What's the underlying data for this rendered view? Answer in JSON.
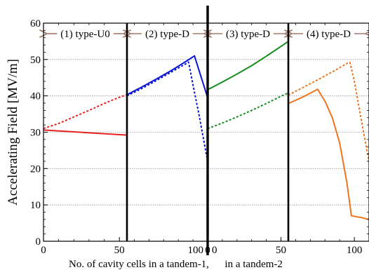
{
  "chart_data": {
    "type": "line",
    "ylabel": "Accelerating Field [MV/m]",
    "xlabel": "No. of cavity cells in a tandem-1,      in a tandem-2",
    "ylim": [
      0,
      60
    ],
    "y_ticks": [
      0,
      10,
      20,
      30,
      40,
      50,
      60
    ],
    "grid": "horizontal dotted",
    "colors": {
      "section1": "#e8231f",
      "section2": "#0a14d8",
      "section3": "#148c1e",
      "section4": "#f0731e"
    },
    "panels": [
      {
        "label": "(1) type-U0",
        "x_ticks": [
          0,
          50
        ],
        "xlim": [
          0,
          55
        ],
        "color_key": "section1",
        "series": [
          {
            "style": "solid",
            "points": [
              [
                0,
                30.6
              ],
              [
                55,
                29.2
              ]
            ]
          },
          {
            "style": "dashed",
            "points": [
              [
                0,
                31.0
              ],
              [
                10,
                32.4
              ],
              [
                20,
                34.2
              ],
              [
                30,
                36.0
              ],
              [
                40,
                37.9
              ],
              [
                50,
                39.6
              ],
              [
                55,
                40.3
              ]
            ]
          }
        ]
      },
      {
        "label": "(2) type-D",
        "x_ticks": [],
        "xlim": [
          55,
          110
        ],
        "color_key": "section2",
        "series": [
          {
            "style": "solid",
            "points": [
              [
                55,
                40.3
              ],
              [
                65,
                42.4
              ],
              [
                75,
                44.6
              ],
              [
                85,
                46.9
              ],
              [
                95,
                49.4
              ],
              [
                101,
                51.0
              ],
              [
                110,
                39.5
              ]
            ]
          },
          {
            "style": "dashed",
            "points": [
              [
                55,
                40.0
              ],
              [
                65,
                42.0
              ],
              [
                75,
                44.2
              ],
              [
                85,
                46.5
              ],
              [
                95,
                48.8
              ],
              [
                97,
                49.3
              ],
              [
                100,
                43.0
              ],
              [
                104,
                35.0
              ],
              [
                107,
                28.5
              ],
              [
                110,
                22.0
              ]
            ]
          }
        ]
      },
      {
        "label": "(3) type-D",
        "x_ticks": [
          0,
          50
        ],
        "xlim": [
          0,
          55
        ],
        "color_key": "section3",
        "series": [
          {
            "style": "solid",
            "points": [
              [
                0,
                41.7
              ],
              [
                10,
                43.8
              ],
              [
                20,
                46.0
              ],
              [
                30,
                48.3
              ],
              [
                40,
                50.9
              ],
              [
                50,
                53.6
              ],
              [
                55,
                55.0
              ]
            ]
          },
          {
            "style": "dashed",
            "points": [
              [
                0,
                31.0
              ],
              [
                10,
                32.5
              ],
              [
                20,
                34.2
              ],
              [
                30,
                36.0
              ],
              [
                40,
                37.9
              ],
              [
                50,
                39.9
              ],
              [
                55,
                40.8
              ]
            ]
          }
        ]
      },
      {
        "label": "(4) type-D",
        "x_ticks": [
          100
        ],
        "xlim": [
          55,
          110
        ],
        "color_key": "section4",
        "series": [
          {
            "style": "solid",
            "points": [
              [
                55,
                37.9
              ],
              [
                65,
                39.7
              ],
              [
                75,
                41.8
              ],
              [
                80,
                38.5
              ],
              [
                85,
                34.0
              ],
              [
                90,
                27.0
              ],
              [
                95,
                16.0
              ],
              [
                98,
                7.0
              ],
              [
                105,
                6.5
              ],
              [
                110,
                6.0
              ]
            ]
          },
          {
            "style": "dashed",
            "points": [
              [
                55,
                40.2
              ],
              [
                65,
                42.3
              ],
              [
                75,
                44.4
              ],
              [
                85,
                46.6
              ],
              [
                95,
                48.9
              ],
              [
                97,
                49.2
              ],
              [
                100,
                44.0
              ],
              [
                104,
                35.0
              ],
              [
                107,
                28.5
              ],
              [
                110,
                22.0
              ]
            ]
          }
        ]
      }
    ]
  }
}
